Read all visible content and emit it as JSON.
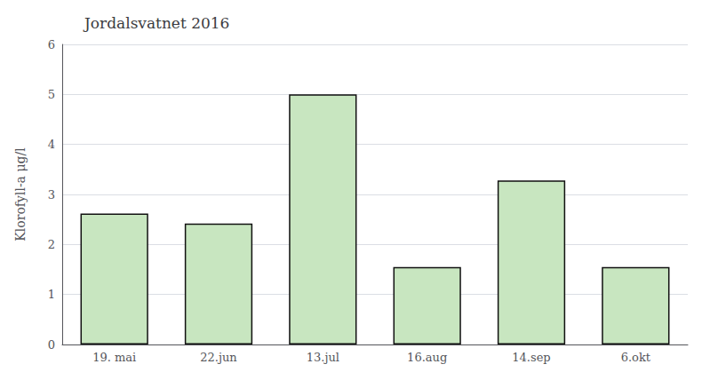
{
  "chart_data": {
    "type": "bar",
    "title": "Jordalsvatnet 2016",
    "ylabel": "Klorofyll-a μg/l",
    "categories": [
      "19. mai",
      "22.jun",
      "13.jul",
      "16.aug",
      "14.sep",
      "6.okt"
    ],
    "values": [
      2.62,
      2.42,
      5.0,
      1.55,
      3.28,
      1.55
    ],
    "color": "#c8e6c0",
    "ylim": [
      0,
      6
    ],
    "yticks": [
      0,
      1,
      2,
      3,
      4,
      5,
      6
    ],
    "grid": true
  }
}
